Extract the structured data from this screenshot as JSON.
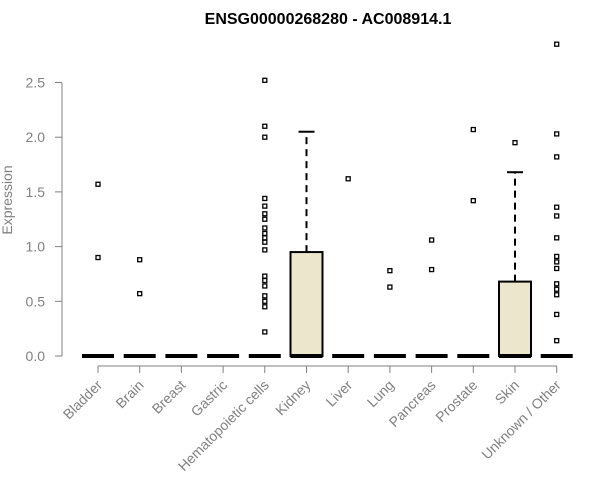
{
  "chart_data": {
    "type": "boxplot",
    "title": "ENSG00000268280 - AC008914.1",
    "xlabel": "",
    "ylabel": "Expression",
    "ylim": [
      0,
      2.9
    ],
    "yticks": [
      0.0,
      0.5,
      1.0,
      1.5,
      2.0,
      2.5
    ],
    "ytick_labels": [
      "0.0",
      "0.5",
      "1.0",
      "1.5",
      "2.0",
      "2.5"
    ],
    "grid": false,
    "box_fill": "#ece6cd",
    "categories": [
      "Bladder",
      "Brain",
      "Breast",
      "Gastric",
      "Hematopoietic cells",
      "Kidney",
      "Liver",
      "Lung",
      "Pancreas",
      "Prostate",
      "Skin",
      "Unknown / Other"
    ],
    "boxes": [
      {
        "category": "Bladder",
        "q1": 0,
        "median": 0,
        "q3": 0,
        "whisker_low": 0,
        "whisker_high": 0,
        "outliers": [
          1.57,
          0.9
        ]
      },
      {
        "category": "Brain",
        "q1": 0,
        "median": 0,
        "q3": 0,
        "whisker_low": 0,
        "whisker_high": 0,
        "outliers": [
          0.88,
          0.57
        ]
      },
      {
        "category": "Breast",
        "q1": 0,
        "median": 0,
        "q3": 0,
        "whisker_low": 0,
        "whisker_high": 0,
        "outliers": []
      },
      {
        "category": "Gastric",
        "q1": 0,
        "median": 0,
        "q3": 0,
        "whisker_low": 0,
        "whisker_high": 0,
        "outliers": []
      },
      {
        "category": "Hematopoietic cells",
        "q1": 0,
        "median": 0,
        "q3": 0,
        "whisker_low": 0,
        "whisker_high": 0,
        "outliers": [
          2.52,
          2.1,
          2.0,
          1.44,
          1.37,
          1.3,
          1.25,
          1.17,
          1.12,
          1.08,
          1.04,
          0.97,
          0.73,
          0.69,
          0.64,
          0.55,
          0.5,
          0.45,
          0.22
        ]
      },
      {
        "category": "Kidney",
        "q1": 0,
        "median": 0,
        "q3": 0.95,
        "whisker_low": 0,
        "whisker_high": 2.05,
        "outliers": []
      },
      {
        "category": "Liver",
        "q1": 0,
        "median": 0,
        "q3": 0,
        "whisker_low": 0,
        "whisker_high": 0,
        "outliers": [
          1.62
        ]
      },
      {
        "category": "Lung",
        "q1": 0,
        "median": 0,
        "q3": 0,
        "whisker_low": 0,
        "whisker_high": 0,
        "outliers": [
          0.78,
          0.63
        ]
      },
      {
        "category": "Pancreas",
        "q1": 0,
        "median": 0,
        "q3": 0,
        "whisker_low": 0,
        "whisker_high": 0,
        "outliers": [
          1.06,
          0.79
        ]
      },
      {
        "category": "Prostate",
        "q1": 0,
        "median": 0,
        "q3": 0,
        "whisker_low": 0,
        "whisker_high": 0,
        "outliers": [
          2.07,
          1.42
        ]
      },
      {
        "category": "Skin",
        "q1": 0,
        "median": 0,
        "q3": 0.68,
        "whisker_low": 0,
        "whisker_high": 1.68,
        "outliers": [
          1.95
        ]
      },
      {
        "category": "Unknown / Other",
        "q1": 0,
        "median": 0,
        "q3": 0,
        "whisker_low": 0,
        "whisker_high": 0,
        "outliers": [
          2.85,
          2.03,
          1.82,
          1.36,
          1.28,
          1.08,
          0.91,
          0.86,
          0.8,
          0.66,
          0.61,
          0.56,
          0.38,
          0.14
        ]
      }
    ]
  }
}
